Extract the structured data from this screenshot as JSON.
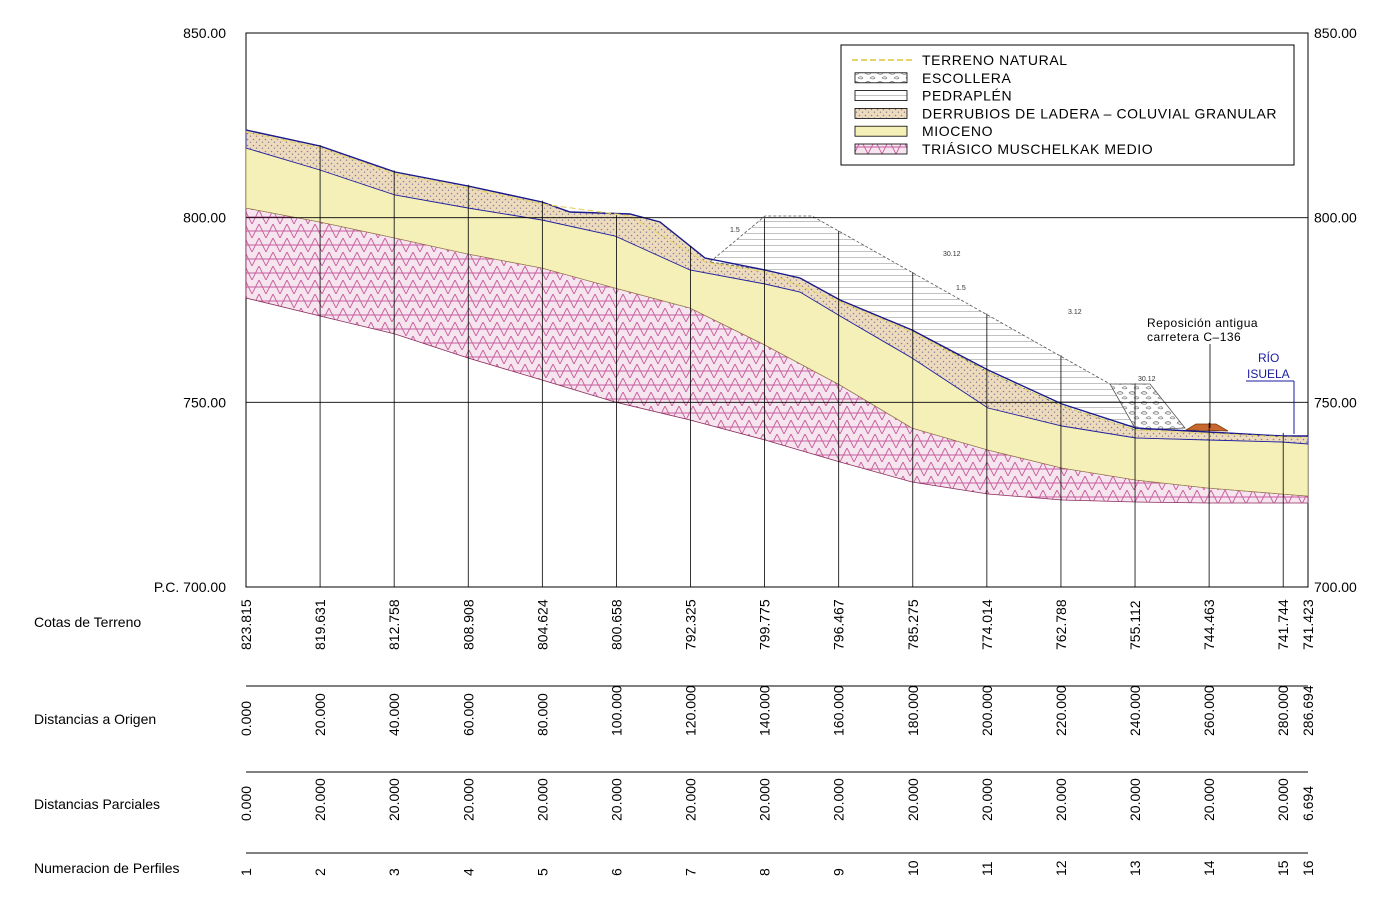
{
  "colors": {
    "mioceno": "#f4f0b8",
    "triasico": "#d68ab8",
    "derrubios": "#e8d4ad",
    "derrubios_dots": "#b07aa0",
    "pedraplen": "#ffffff",
    "escollera": "#d8d8d8",
    "terreno_line": "#e6d36a",
    "profile_line": "#2020a0",
    "river": "#1a1aa0",
    "road": "#c8682e"
  },
  "axis": {
    "left_labels": [
      "850.00",
      "800.00",
      "750.00",
      "P.C. 700.00"
    ],
    "right_labels": [
      "850.00",
      "800.00",
      "750.00",
      "700.00"
    ],
    "elev_values": [
      850,
      800,
      750,
      700
    ]
  },
  "legend": {
    "items": [
      {
        "label": "TERRENO NATURAL",
        "swatch": "terreno"
      },
      {
        "label": "ESCOLLERA",
        "swatch": "escollera"
      },
      {
        "label": "PEDRAPLÉN",
        "swatch": "pedraplen"
      },
      {
        "label": "DERRUBIOS DE LADERA – COLUVIAL GRANULAR",
        "swatch": "derrubios"
      },
      {
        "label": "MIOCENO",
        "swatch": "mioceno"
      },
      {
        "label": "TRIÁSICO MUSCHELKAK MEDIO",
        "swatch": "triasico"
      }
    ]
  },
  "annotations": {
    "road_note_line1": "Reposición antigua",
    "road_note_line2": "carretera C–136",
    "river_line1": "RÍO",
    "river_line2": "ISUELA"
  },
  "rows": {
    "cotas_label": "Cotas de Terreno",
    "origen_label": "Distancias a Origen",
    "parciales_label": "Distancias Parciales",
    "perfiles_label": "Numeracion de Perfiles"
  },
  "stations": [
    {
      "cota": "823.815",
      "origen": "0.000",
      "parcial": "0.000",
      "perfil": "1",
      "distance": 0
    },
    {
      "cota": "819.631",
      "origen": "20.000",
      "parcial": "20.000",
      "perfil": "2",
      "distance": 20
    },
    {
      "cota": "812.758",
      "origen": "40.000",
      "parcial": "20.000",
      "perfil": "3",
      "distance": 40
    },
    {
      "cota": "808.908",
      "origen": "60.000",
      "parcial": "20.000",
      "perfil": "4",
      "distance": 60
    },
    {
      "cota": "804.624",
      "origen": "80.000",
      "parcial": "20.000",
      "perfil": "5",
      "distance": 80
    },
    {
      "cota": "800.658",
      "origen": "100.000",
      "parcial": "20.000",
      "perfil": "6",
      "distance": 100
    },
    {
      "cota": "792.325",
      "origen": "120.000",
      "parcial": "20.000",
      "perfil": "7",
      "distance": 120
    },
    {
      "cota": "799.775",
      "origen": "140.000",
      "parcial": "20.000",
      "perfil": "8",
      "distance": 140
    },
    {
      "cota": "796.467",
      "origen": "160.000",
      "parcial": "20.000",
      "perfil": "9",
      "distance": 160
    },
    {
      "cota": "785.275",
      "origen": "180.000",
      "parcial": "20.000",
      "perfil": "10",
      "distance": 180
    },
    {
      "cota": "774.014",
      "origen": "200.000",
      "parcial": "20.000",
      "perfil": "11",
      "distance": 200
    },
    {
      "cota": "762.788",
      "origen": "220.000",
      "parcial": "20.000",
      "perfil": "12",
      "distance": 220
    },
    {
      "cota": "755.112",
      "origen": "240.000",
      "parcial": "20.000",
      "perfil": "13",
      "distance": 240
    },
    {
      "cota": "744.463",
      "origen": "260.000",
      "parcial": "20.000",
      "perfil": "14",
      "distance": 260
    },
    {
      "cota": "741.744",
      "origen": "280.000",
      "parcial": "20.000",
      "perfil": "15",
      "distance": 280
    },
    {
      "cota": "741.423",
      "origen": "286.694",
      "parcial": "6.694",
      "perfil": "16",
      "distance": 286.694
    }
  ]
}
